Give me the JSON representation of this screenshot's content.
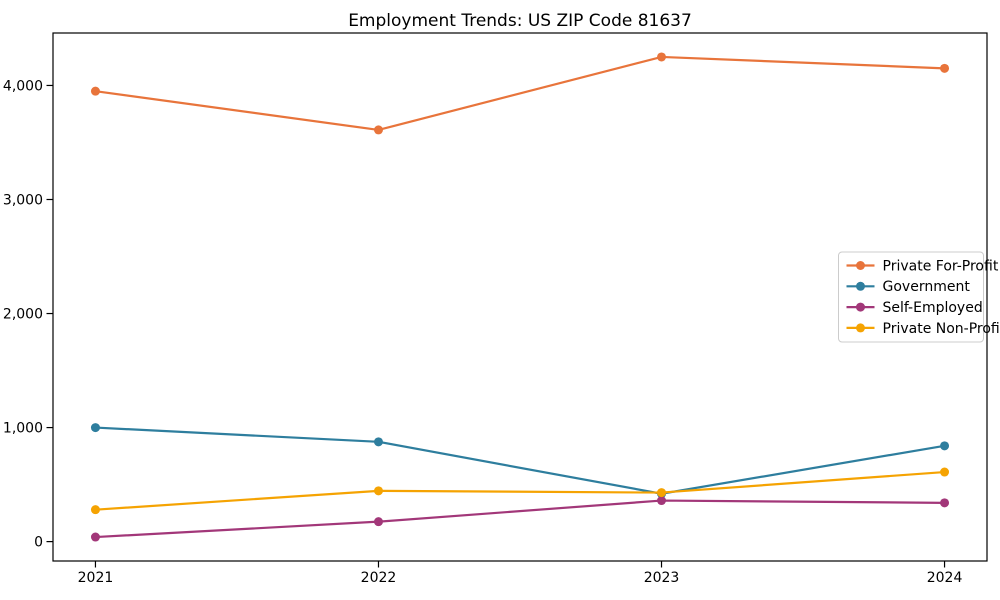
{
  "chart_data": {
    "type": "line",
    "title": "Employment Trends: US ZIP Code 81637",
    "xlabel": "",
    "ylabel": "",
    "categories": [
      "2021",
      "2022",
      "2023",
      "2024"
    ],
    "series": [
      {
        "name": "Private For-Profit",
        "color": "#E8743B",
        "values": [
          3950,
          3610,
          4250,
          4150
        ]
      },
      {
        "name": "Government",
        "color": "#2E7E9E",
        "values": [
          1000,
          875,
          420,
          840
        ]
      },
      {
        "name": "Self-Employed",
        "color": "#A23779",
        "values": [
          40,
          175,
          360,
          340
        ]
      },
      {
        "name": "Private Non-Profit",
        "color": "#F5A302",
        "values": [
          280,
          445,
          430,
          610
        ]
      }
    ],
    "yticks": [
      {
        "value": 0,
        "label": "0"
      },
      {
        "value": 1000,
        "label": "1,000"
      },
      {
        "value": 2000,
        "label": "2,000"
      },
      {
        "value": 3000,
        "label": "3,000"
      },
      {
        "value": 4000,
        "label": "4,000"
      }
    ],
    "ylim": [
      -170,
      4460
    ],
    "xlim": [
      -0.15,
      3.15
    ],
    "grid": false,
    "legend_position": "center right",
    "background_color": "#ffffff",
    "axis_color": "#000000",
    "legend_border_color": "#cccccc"
  }
}
